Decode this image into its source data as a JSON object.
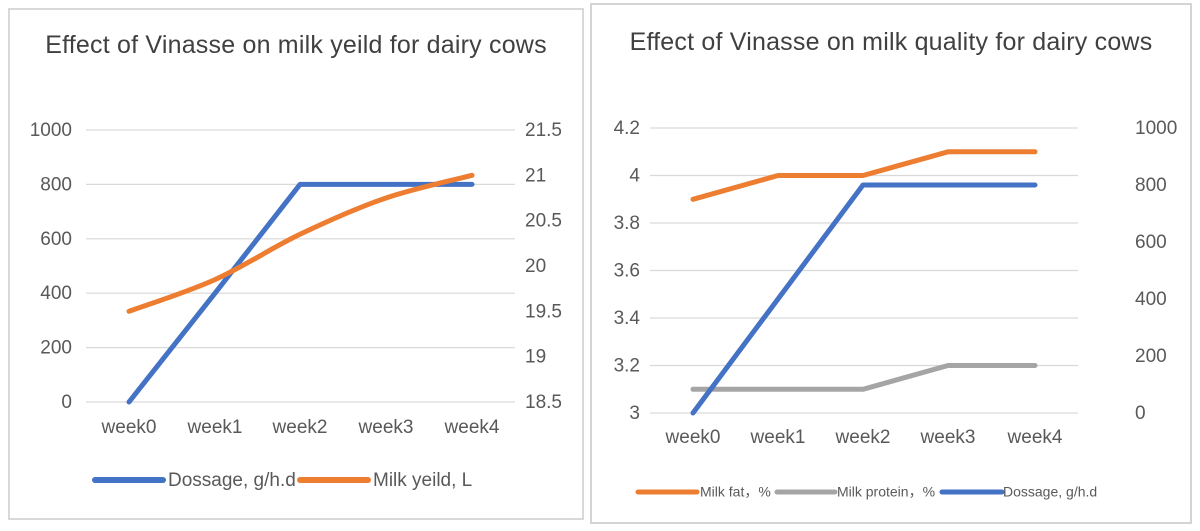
{
  "page": {
    "background": "#ffffff",
    "axis_text_color": "#595959",
    "title_text_color": "#404040",
    "gridline_color": "#d9d9d9"
  },
  "chart_data": [
    {
      "type": "line",
      "title": "Effect of Vinasse on milk yeild for dairy cows",
      "title_lines": [
        "Effect of Vinasse on milk yeild for",
        "dairy cows"
      ],
      "categories": [
        "week0",
        "week1",
        "week2",
        "week3",
        "week4"
      ],
      "grid": true,
      "legend_position": "bottom",
      "left_axis": {
        "ticks": [
          "1000",
          "800",
          "600",
          "400",
          "200",
          "0"
        ],
        "min": 0,
        "max": 1000
      },
      "right_axis": {
        "ticks": [
          "21.5",
          "21",
          "20.5",
          "20",
          "19.5",
          "19",
          "18.5"
        ],
        "min": 18.5,
        "max": 21.5
      },
      "series": [
        {
          "name": "Dossage, g/h.d",
          "color": "#4472C4",
          "axis": "left",
          "smooth": false,
          "values": [
            0,
            400,
            800,
            800,
            800
          ]
        },
        {
          "name": "Milk yeild, L",
          "color": "#ED7D31",
          "axis": "right",
          "smooth": true,
          "values": [
            19.5,
            19.85,
            20.35,
            20.75,
            21.0
          ]
        }
      ]
    },
    {
      "type": "line",
      "title": "Effect of Vinasse on milk quality for dairy cows",
      "title_lines": [
        "Effect of Vinasse on milk quality for",
        "dairy cows"
      ],
      "categories": [
        "week0",
        "week1",
        "week2",
        "week3",
        "week4"
      ],
      "grid": true,
      "legend_position": "bottom",
      "left_axis": {
        "ticks": [
          "4.2",
          "4",
          "3.8",
          "3.6",
          "3.4",
          "3.2",
          "3"
        ],
        "min": 3,
        "max": 4.2
      },
      "right_axis": {
        "ticks": [
          "1000",
          "800",
          "600",
          "400",
          "200",
          "0"
        ],
        "min": 0,
        "max": 1000
      },
      "series": [
        {
          "name": "Milk fat，%",
          "color": "#ED7D31",
          "axis": "left",
          "smooth": false,
          "values": [
            3.9,
            4.0,
            4.0,
            4.1,
            4.1
          ]
        },
        {
          "name": "Milk protein，%",
          "color": "#A5A5A5",
          "axis": "left",
          "smooth": false,
          "values": [
            3.1,
            3.1,
            3.1,
            3.2,
            3.2
          ]
        },
        {
          "name": "Dossage, g/h.d",
          "color": "#4472C4",
          "axis": "right",
          "smooth": false,
          "values": [
            0,
            400,
            800,
            800,
            800
          ]
        }
      ]
    }
  ]
}
